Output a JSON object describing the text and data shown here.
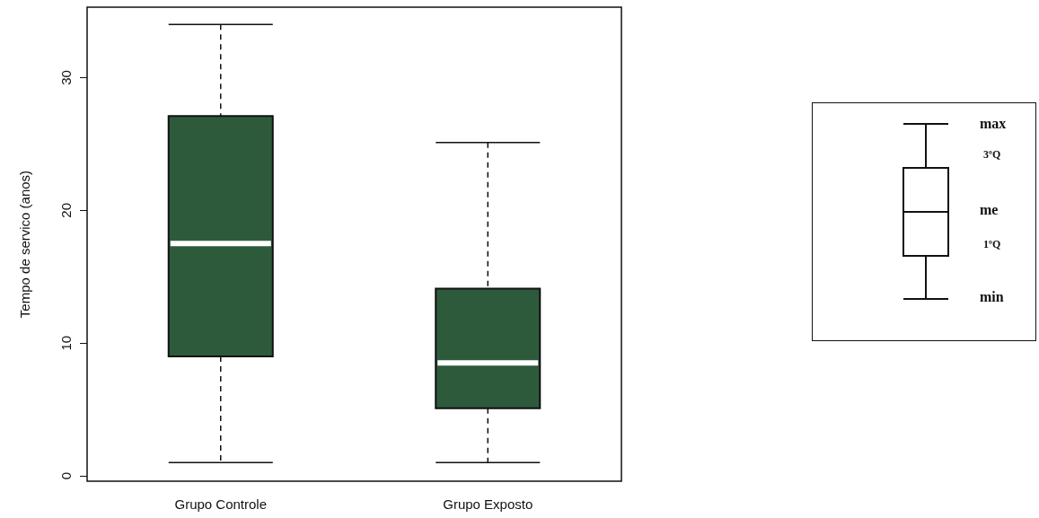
{
  "chart_data": {
    "type": "box",
    "ylabel": "Tempo de servico (anos)",
    "categories": [
      "Grupo Controle",
      "Grupo Exposto"
    ],
    "series": [
      {
        "color": "#2e5a3c",
        "boxes": [
          {
            "low": 1.0,
            "q1": 9.0,
            "median": 17.5,
            "q3": 27.1,
            "high": 34.0
          },
          {
            "low": 1.0,
            "q1": 5.1,
            "median": 8.5,
            "q3": 14.1,
            "high": 25.1
          }
        ]
      }
    ],
    "ylim": [
      -0.4,
      35.3
    ],
    "yticks": [
      0,
      10,
      20,
      30
    ],
    "grid": false,
    "annotations": [
      "max",
      "3ºQ",
      "me",
      "1ºQ",
      "min"
    ]
  }
}
